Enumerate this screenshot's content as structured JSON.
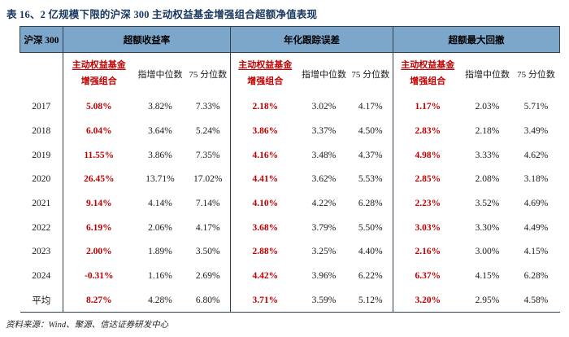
{
  "title": "表 16、2 亿规模下限的沪深 300 主动权益基金增强组合超额净值表现",
  "table": {
    "corner_header": "沪深 300",
    "groups": [
      {
        "label": "超额收益率"
      },
      {
        "label": "年化跟踪误差"
      },
      {
        "label": "超额最大回撤"
      }
    ],
    "sub_headers": {
      "portfolio_line1": "主动权益基金",
      "portfolio_line2": "增强组合",
      "median": "指增中位数",
      "p75": "75 分位数"
    },
    "rows": [
      {
        "year": "2017",
        "values": [
          "5.08%",
          "3.82%",
          "7.33%",
          "2.18%",
          "3.02%",
          "4.17%",
          "1.17%",
          "2.03%",
          "5.71%"
        ]
      },
      {
        "year": "2018",
        "values": [
          "6.04%",
          "3.64%",
          "5.24%",
          "3.86%",
          "3.37%",
          "4.50%",
          "2.83%",
          "2.18%",
          "3.49%"
        ]
      },
      {
        "year": "2019",
        "values": [
          "11.55%",
          "3.86%",
          "7.35%",
          "4.16%",
          "3.48%",
          "4.37%",
          "4.98%",
          "3.33%",
          "4.62%"
        ]
      },
      {
        "year": "2020",
        "values": [
          "26.45%",
          "13.71%",
          "17.02%",
          "4.41%",
          "3.62%",
          "5.53%",
          "2.85%",
          "2.08%",
          "3.18%"
        ]
      },
      {
        "year": "2021",
        "values": [
          "9.14%",
          "4.14%",
          "7.14%",
          "4.10%",
          "4.22%",
          "6.28%",
          "2.23%",
          "3.52%",
          "4.69%"
        ]
      },
      {
        "year": "2022",
        "values": [
          "6.19%",
          "2.06%",
          "4.17%",
          "3.68%",
          "3.79%",
          "5.50%",
          "3.03%",
          "3.30%",
          "4.49%"
        ]
      },
      {
        "year": "2023",
        "values": [
          "2.00%",
          "1.89%",
          "3.50%",
          "2.88%",
          "3.25%",
          "4.40%",
          "2.16%",
          "3.00%",
          "4.15%"
        ]
      },
      {
        "year": "2024",
        "values": [
          "-0.31%",
          "1.16%",
          "2.69%",
          "4.42%",
          "3.96%",
          "6.22%",
          "6.37%",
          "4.15%",
          "6.28%"
        ]
      },
      {
        "year": "平均",
        "values": [
          "8.27%",
          "4.28%",
          "6.80%",
          "3.71%",
          "3.59%",
          "5.12%",
          "3.20%",
          "2.95%",
          "4.58%"
        ]
      }
    ]
  },
  "footer": "资料来源：Wind、聚源、信达证券研发中心",
  "colors": {
    "header_bg": "#7DA6CB",
    "title_navy": "#17375E",
    "accent_red": "#C00000",
    "border_dark": "#33404d"
  }
}
